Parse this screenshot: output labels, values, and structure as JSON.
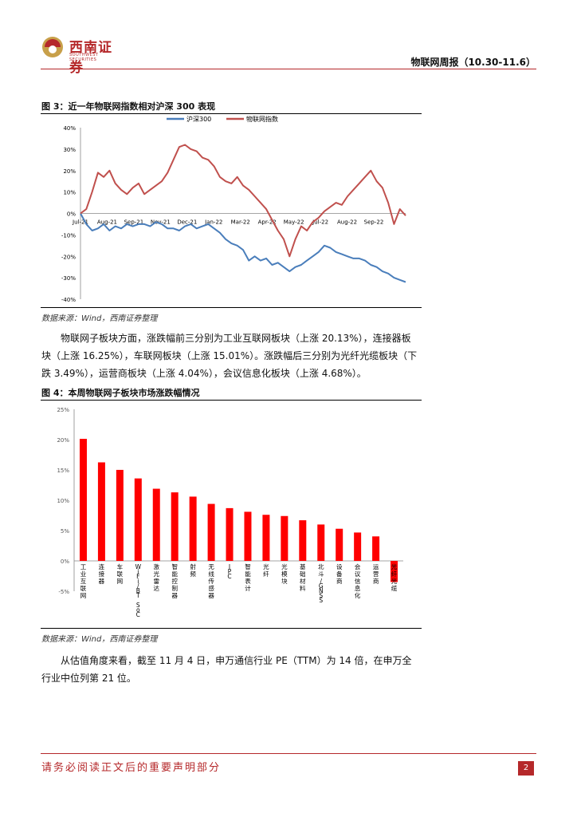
{
  "header": {
    "logo_cn": "西南证券",
    "logo_en": "SOUTHWEST SECURITIES",
    "report_title": "物联网周报（10.30-11.6）"
  },
  "figure3": {
    "title": "图 3：近一年物联网指数相对沪深 300 表现",
    "source": "数据来源：Wind，西南证券整理"
  },
  "paragraph1": "物联网子板块方面，涨跌幅前三分别为工业互联网板块（上涨 20.13%），连接器板块（上涨 16.25%），车联网板块（上涨 15.01%）。涨跌幅后三分别为光纤光缆板块（下跌 3.49%），运营商板块（上涨 4.04%），会议信息化板块（上涨 4.68%）。",
  "figure4": {
    "title": "图 4：本周物联网子板块市场涨跌幅情况",
    "source": "数据来源：Wind，西南证券整理"
  },
  "paragraph2": "从估值角度来看，截至 11 月 4 日，申万通信行业 PE（TTM）为 14 倍，在申万全行业中位列第 21 位。",
  "footer": {
    "disclaimer": "请务必阅读正文后的重要声明部分",
    "page": "2"
  },
  "colors": {
    "brand": "#b5282a",
    "series_hs300": "#4a7ebb",
    "series_iot": "#c0504d",
    "bar": "#ff0000"
  },
  "chart_data": [
    {
      "type": "line",
      "title": "",
      "legend": [
        "沪深300",
        "物联网指数"
      ],
      "legend_position": "top",
      "x_tick_labels": [
        "Jul-21",
        "Aug-21",
        "Sep-21",
        "Nov-21",
        "Dec-21",
        "Jan-22",
        "Mar-22",
        "Apr-22",
        "May-22",
        "Jul-22",
        "Aug-22",
        "Sep-22"
      ],
      "y_tick_labels": [
        "40%",
        "30%",
        "20%",
        "10%",
        "0%",
        "-10%",
        "-20%",
        "-30%",
        "-40%"
      ],
      "ylim": [
        -40,
        40
      ],
      "series": [
        {
          "name": "沪深300",
          "values": [
            0,
            -5,
            -8,
            -7,
            -5,
            -8,
            -6,
            -7,
            -5,
            -6,
            -5,
            -5,
            -6,
            -4,
            -5,
            -7,
            -7,
            -8,
            -6,
            -5,
            -7,
            -6,
            -5,
            -7,
            -9,
            -12,
            -14,
            -15,
            -17,
            -22,
            -20,
            -22,
            -21,
            -24,
            -23,
            -25,
            -27,
            -25,
            -24,
            -22,
            -20,
            -18,
            -15,
            -16,
            -18,
            -19,
            -20,
            -21,
            -21,
            -22,
            -24,
            -25,
            -27,
            -28,
            -30,
            -31,
            -32
          ]
        },
        {
          "name": "物联网指数",
          "values": [
            0,
            2,
            10,
            19,
            17,
            20,
            14,
            11,
            9,
            12,
            14,
            9,
            11,
            13,
            15,
            19,
            25,
            31,
            32,
            30,
            29,
            26,
            25,
            22,
            17,
            15,
            14,
            17,
            13,
            11,
            8,
            5,
            2,
            -3,
            -8,
            -12,
            -20,
            -12,
            -6,
            -8,
            -4,
            -2,
            1,
            3,
            5,
            4,
            8,
            11,
            14,
            17,
            20,
            15,
            12,
            5,
            -5,
            2,
            -1
          ]
        }
      ]
    },
    {
      "type": "bar",
      "title": "",
      "ylim": [
        -5,
        25
      ],
      "y_tick_labels": [
        "25%",
        "20%",
        "15%",
        "10%",
        "5%",
        "0%",
        "-5%"
      ],
      "categories": [
        "工业互联网",
        "连接器",
        "车联网",
        "WiFi/BT SoC",
        "激光雷达",
        "智能控制器",
        "射频",
        "无线传感器",
        "IPC",
        "智能表计",
        "光纤",
        "光模块",
        "基础材料",
        "北斗/GNSS",
        "设备商",
        "会议信息化",
        "运营商",
        "光纤光缆"
      ],
      "values": [
        20.13,
        16.25,
        15.01,
        13.6,
        11.9,
        11.3,
        10.6,
        9.4,
        8.7,
        8.1,
        7.6,
        7.4,
        6.7,
        6.0,
        5.3,
        4.68,
        4.04,
        -3.49
      ]
    }
  ]
}
